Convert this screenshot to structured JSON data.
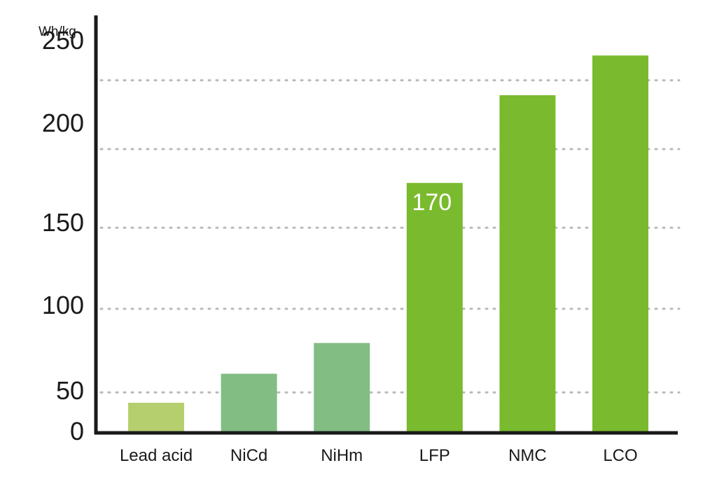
{
  "chart_data": {
    "type": "bar",
    "title": "",
    "xlabel": "",
    "ylabel": "Wh/kg",
    "categories": [
      "Lead acid",
      "NiCd",
      "NiHm",
      "LFP",
      "NMC",
      "LCO"
    ],
    "values": [
      35,
      60,
      78,
      170,
      217,
      241
    ],
    "colors": [
      "#b5cf6e",
      "#82bd83",
      "#82bd83",
      "#7aba2e",
      "#7aba2e",
      "#7aba2e"
    ],
    "data_labels": [
      null,
      null,
      null,
      "170",
      null,
      null
    ],
    "y_ticks": [
      0,
      50,
      100,
      150,
      200,
      250
    ],
    "y_tick_labels": [
      "0",
      "50",
      "100",
      "150",
      "200",
      "250"
    ],
    "gridlines": [
      48,
      98,
      147,
      187,
      226
    ],
    "ylim": [
      0,
      250
    ],
    "grid": true
  }
}
